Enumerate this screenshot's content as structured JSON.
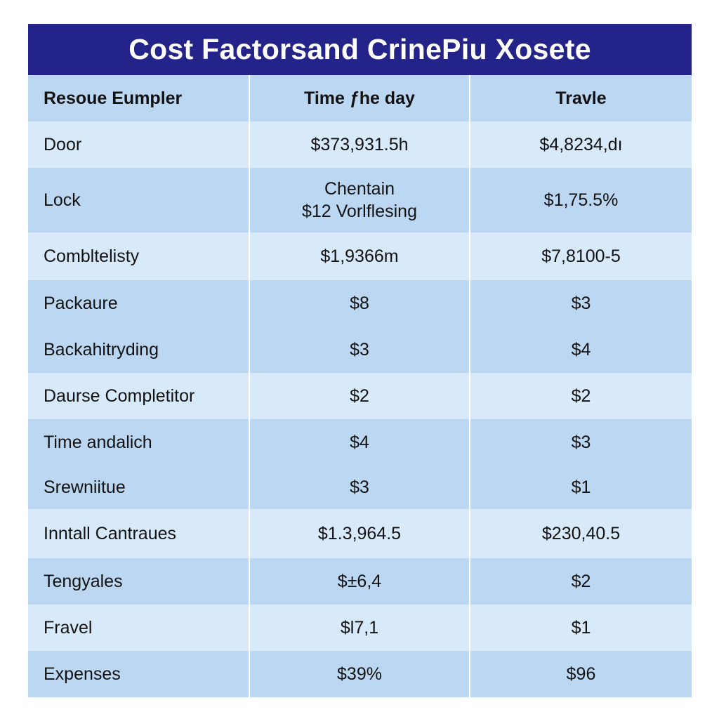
{
  "title": "Cost Factorsand CrinePiu Xosete",
  "columns": [
    "Resoue Eumpler",
    "Time ƒhe day",
    "Travle"
  ],
  "rows": [
    {
      "label": "Door",
      "time": [
        "$373,931.5h"
      ],
      "travel": "$4,8234,dı",
      "height": 66,
      "shade": "light"
    },
    {
      "label": "Lock",
      "time": [
        "Chentain",
        "$12 Vorlflesing"
      ],
      "travel": "$1,75.5%",
      "height": 92,
      "shade": "dark"
    },
    {
      "label": "Combltelisty",
      "time": [
        "$1,9366m"
      ],
      "travel": "$7,8100-5",
      "height": 68,
      "shade": "light"
    },
    {
      "label": "Packaure",
      "time": [
        "$8"
      ],
      "travel": "$3",
      "height": 66,
      "shade": "dark"
    },
    {
      "label": "Backahitryding",
      "time": [
        "$3"
      ],
      "travel": "$4",
      "height": 66,
      "shade": "dark"
    },
    {
      "label": "Daurse Completitor",
      "time": [
        "$2"
      ],
      "travel": "$2",
      "height": 66,
      "shade": "light"
    },
    {
      "label": "Time andalich",
      "time": [
        "$4"
      ],
      "travel": "$3",
      "height": 66,
      "shade": "dark"
    },
    {
      "label": "Srewniitue",
      "time": [
        "$3"
      ],
      "travel": "$1",
      "height": 62,
      "shade": "dark"
    },
    {
      "label": "Inntall Cantraues",
      "time": [
        "$1.3,964.5"
      ],
      "travel": "$230,40.5",
      "height": 70,
      "shade": "light"
    },
    {
      "label": "Tengyales",
      "time": [
        "$±6,4"
      ],
      "travel": "$2",
      "height": 66,
      "shade": "dark"
    },
    {
      "label": "Fravel",
      "time": [
        "$l7,1"
      ],
      "travel": "$1",
      "height": 66,
      "shade": "light"
    },
    {
      "label": "Expenses",
      "time": [
        "$39%"
      ],
      "travel": "$96",
      "height": 66,
      "shade": "dark"
    }
  ],
  "colors": {
    "title_bg": "#23238a",
    "title_text": "#ffffff",
    "row_light": "#d8e9fa",
    "row_dark": "#bcd7f1"
  }
}
